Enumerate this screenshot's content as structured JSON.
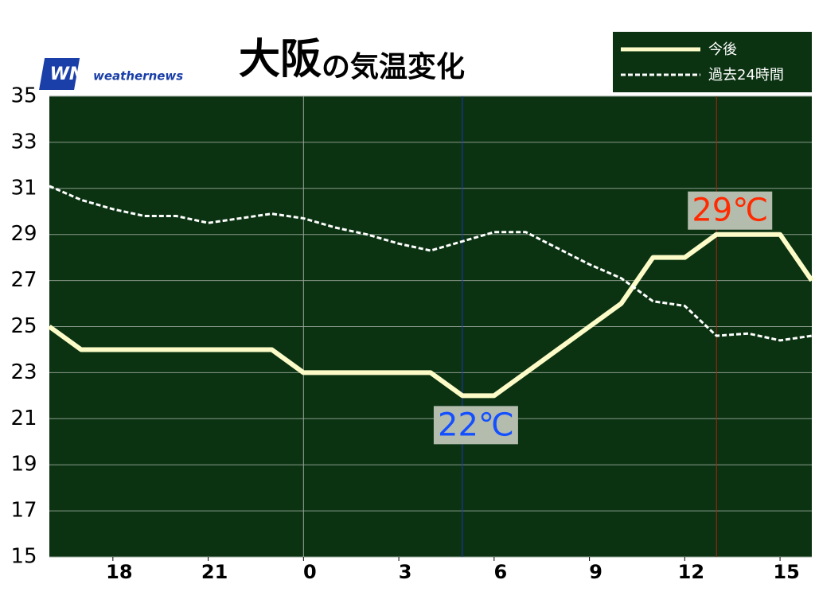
{
  "chart_data": {
    "type": "line",
    "title_place": "大阪",
    "title_rest": "の気温変化",
    "brand_logo": "WN",
    "brand": "weathernews",
    "x": [
      16,
      17,
      18,
      19,
      20,
      21,
      22,
      23,
      24,
      25,
      26,
      27,
      28,
      29,
      30,
      31,
      32,
      33,
      34,
      35,
      36,
      37,
      38,
      39,
      40
    ],
    "series": [
      {
        "name": "今後",
        "color": "#fdfbc8",
        "style": "solid",
        "values": [
          25,
          24,
          24,
          24,
          24,
          24,
          24,
          24,
          23,
          23,
          23,
          23,
          23,
          22,
          22,
          23,
          24,
          25,
          26,
          28,
          28,
          29,
          29,
          29,
          27
        ]
      },
      {
        "name": "過去24時間",
        "color": "#ffffff",
        "style": "dashed",
        "values": [
          31.1,
          30.5,
          30.1,
          29.8,
          29.8,
          29.5,
          29.7,
          29.9,
          29.7,
          29.3,
          29.0,
          28.6,
          28.3,
          28.7,
          29.1,
          29.1,
          28.4,
          27.7,
          27.1,
          26.1,
          25.9,
          24.6,
          24.7,
          24.4,
          24.6
        ]
      }
    ],
    "xlim": [
      16,
      40
    ],
    "xticks": [
      18,
      21,
      {
        "value": 24,
        "label": "0"
      },
      {
        "value": 27,
        "label": "3"
      },
      {
        "value": 30,
        "label": "6"
      },
      {
        "value": 33,
        "label": "9"
      },
      {
        "value": 36,
        "label": "12"
      },
      {
        "value": 39,
        "label": "15"
      }
    ],
    "day_boundary": 24,
    "ylim": [
      15,
      35
    ],
    "yticks": [
      15,
      17,
      19,
      21,
      23,
      25,
      27,
      29,
      31,
      33,
      35
    ],
    "grid": true,
    "legend": "top-right",
    "background": "#0b3312",
    "annotations": [
      {
        "text": "22℃",
        "x": 29,
        "y": 22,
        "color": "#1450ff",
        "line_color": "#2233bb",
        "position": "below"
      },
      {
        "text": "29℃",
        "x": 37,
        "y": 29,
        "color": "#ff2a00",
        "line_color": "#b02010",
        "position": "above"
      }
    ]
  }
}
